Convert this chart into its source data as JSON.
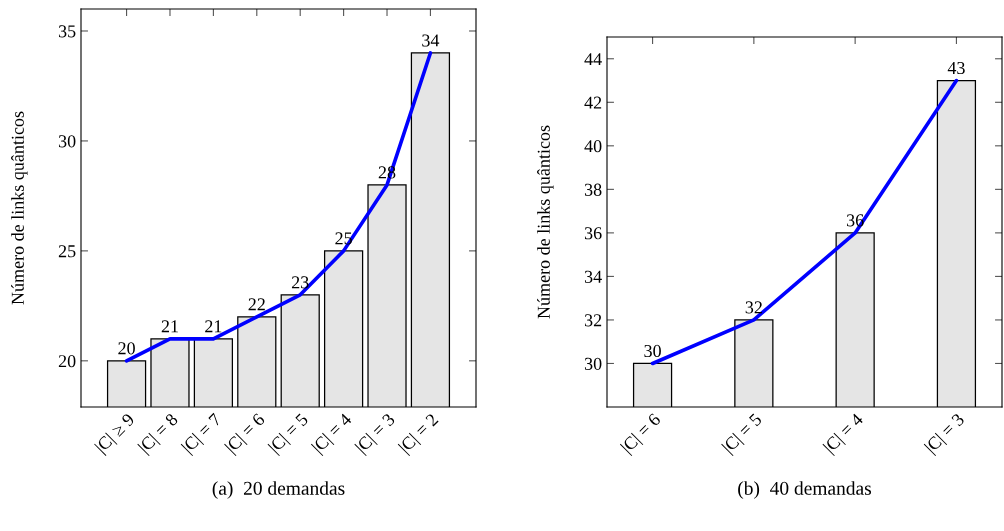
{
  "chart_data": [
    {
      "type": "bar",
      "ylabel": "Número de links quânticos",
      "categories": [
        "|C| ≥ 9",
        "|C| = 8",
        "|C| = 7",
        "|C| = 6",
        "|C| = 5",
        "|C| = 4",
        "|C| = 3",
        "|C| = 2"
      ],
      "series": [
        {
          "color": "#e5e5e5",
          "values": [
            20,
            21,
            21,
            22,
            23,
            25,
            28,
            34
          ],
          "value_labels": [
            "20",
            "21",
            "21",
            "22",
            "23",
            "25",
            "28",
            "34"
          ]
        },
        {
          "type": "line",
          "color": "#0000ff",
          "values": [
            20,
            21,
            21,
            22,
            23,
            25,
            28,
            34
          ]
        }
      ],
      "ylim": [
        17.9,
        36
      ],
      "yticks": [
        20,
        25,
        30,
        35
      ],
      "line_style": "solid",
      "annotations": [
        "(a)  20 demandas"
      ]
    },
    {
      "type": "bar",
      "ylabel": "Número de links quânticos",
      "categories": [
        "|C| = 6",
        "|C| = 5",
        "|C| = 4",
        "|C| = 3"
      ],
      "series": [
        {
          "color": "#e5e5e5",
          "values": [
            30,
            32,
            36,
            43
          ],
          "value_labels": [
            "30",
            "32",
            "36",
            "43"
          ]
        },
        {
          "type": "line",
          "color": "#0000ff",
          "values": [
            30,
            32,
            36,
            43
          ]
        }
      ],
      "ylim": [
        28,
        45
      ],
      "yticks": [
        30,
        32,
        34,
        36,
        38,
        40,
        42,
        44
      ],
      "line_style": "solid",
      "annotations": [
        "(b)  40 demandas"
      ]
    }
  ]
}
